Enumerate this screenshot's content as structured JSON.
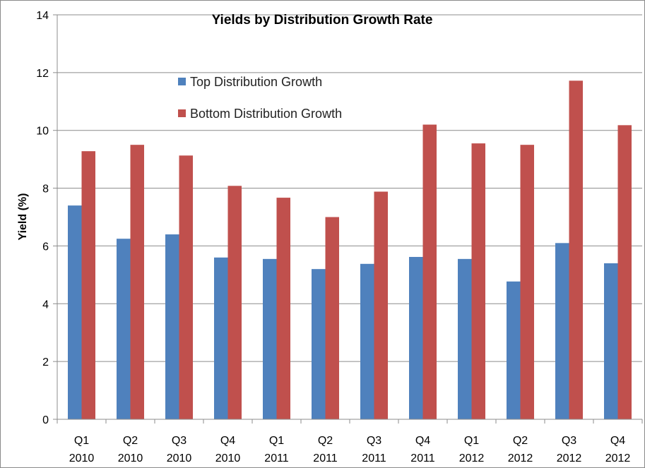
{
  "chart_data": {
    "type": "bar",
    "title": "Yields by Distribution Growth Rate",
    "xlabel": "",
    "ylabel": "Yield (%)",
    "ylim": [
      0,
      14
    ],
    "yticks": [
      0,
      2,
      4,
      6,
      8,
      10,
      12,
      14
    ],
    "grid": "horizontal",
    "legend_position": "top-left inside",
    "categories": [
      [
        "Q1",
        "2010"
      ],
      [
        "Q2",
        "2010"
      ],
      [
        "Q3",
        "2010"
      ],
      [
        "Q4",
        "2010"
      ],
      [
        "Q1",
        "2011"
      ],
      [
        "Q2",
        "2011"
      ],
      [
        "Q3",
        "2011"
      ],
      [
        "Q4",
        "2011"
      ],
      [
        "Q1",
        "2012"
      ],
      [
        "Q2",
        "2012"
      ],
      [
        "Q3",
        "2012"
      ],
      [
        "Q4",
        "2012"
      ]
    ],
    "series": [
      {
        "name": "Top Distribution Growth",
        "color": "#4F81BD",
        "values": [
          7.4,
          6.25,
          6.4,
          5.6,
          5.55,
          5.2,
          5.38,
          5.62,
          5.55,
          4.77,
          6.1,
          5.4
        ]
      },
      {
        "name": "Bottom Distribution Growth",
        "color": "#C0504D",
        "values": [
          9.28,
          9.5,
          9.13,
          8.08,
          7.67,
          7.0,
          7.88,
          10.2,
          9.55,
          9.5,
          11.72,
          10.18
        ]
      }
    ]
  }
}
